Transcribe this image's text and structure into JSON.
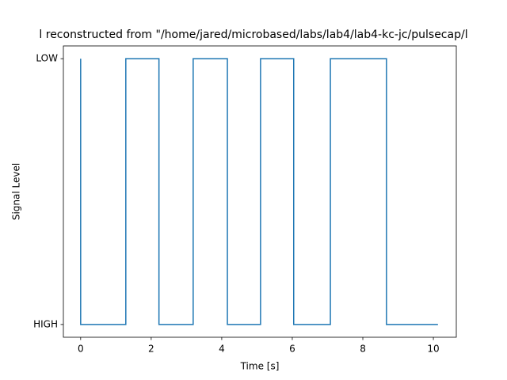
{
  "chart_data": {
    "type": "line",
    "title": "l reconstructed from \"/home/jared/microbased/labs/lab4/lab4-kc-jc/pulsecap/l",
    "x_label": "Time [s]",
    "y_label": "Signal Level",
    "x": [
      0,
      0,
      1.28,
      1.28,
      2.22,
      2.22,
      3.19,
      3.19,
      4.16,
      4.16,
      5.1,
      5.1,
      6.04,
      6.04,
      7.08,
      7.08,
      8.67,
      8.67,
      10.13
    ],
    "series": [
      {
        "color": "#1f77b4",
        "values": [
          1,
          0,
          0,
          1,
          1,
          0,
          0,
          1,
          1,
          0,
          0,
          1,
          1,
          0,
          0,
          1,
          1,
          0,
          0
        ]
      }
    ],
    "xlim": [
      -0.49,
      10.65
    ],
    "xticks": [
      0,
      2,
      4,
      6,
      8,
      10
    ],
    "ylim": [
      -0.048,
      1.048
    ],
    "yticks": [
      {
        "value": 0,
        "label": "HIGH"
      },
      {
        "value": 1,
        "label": "LOW"
      }
    ]
  }
}
